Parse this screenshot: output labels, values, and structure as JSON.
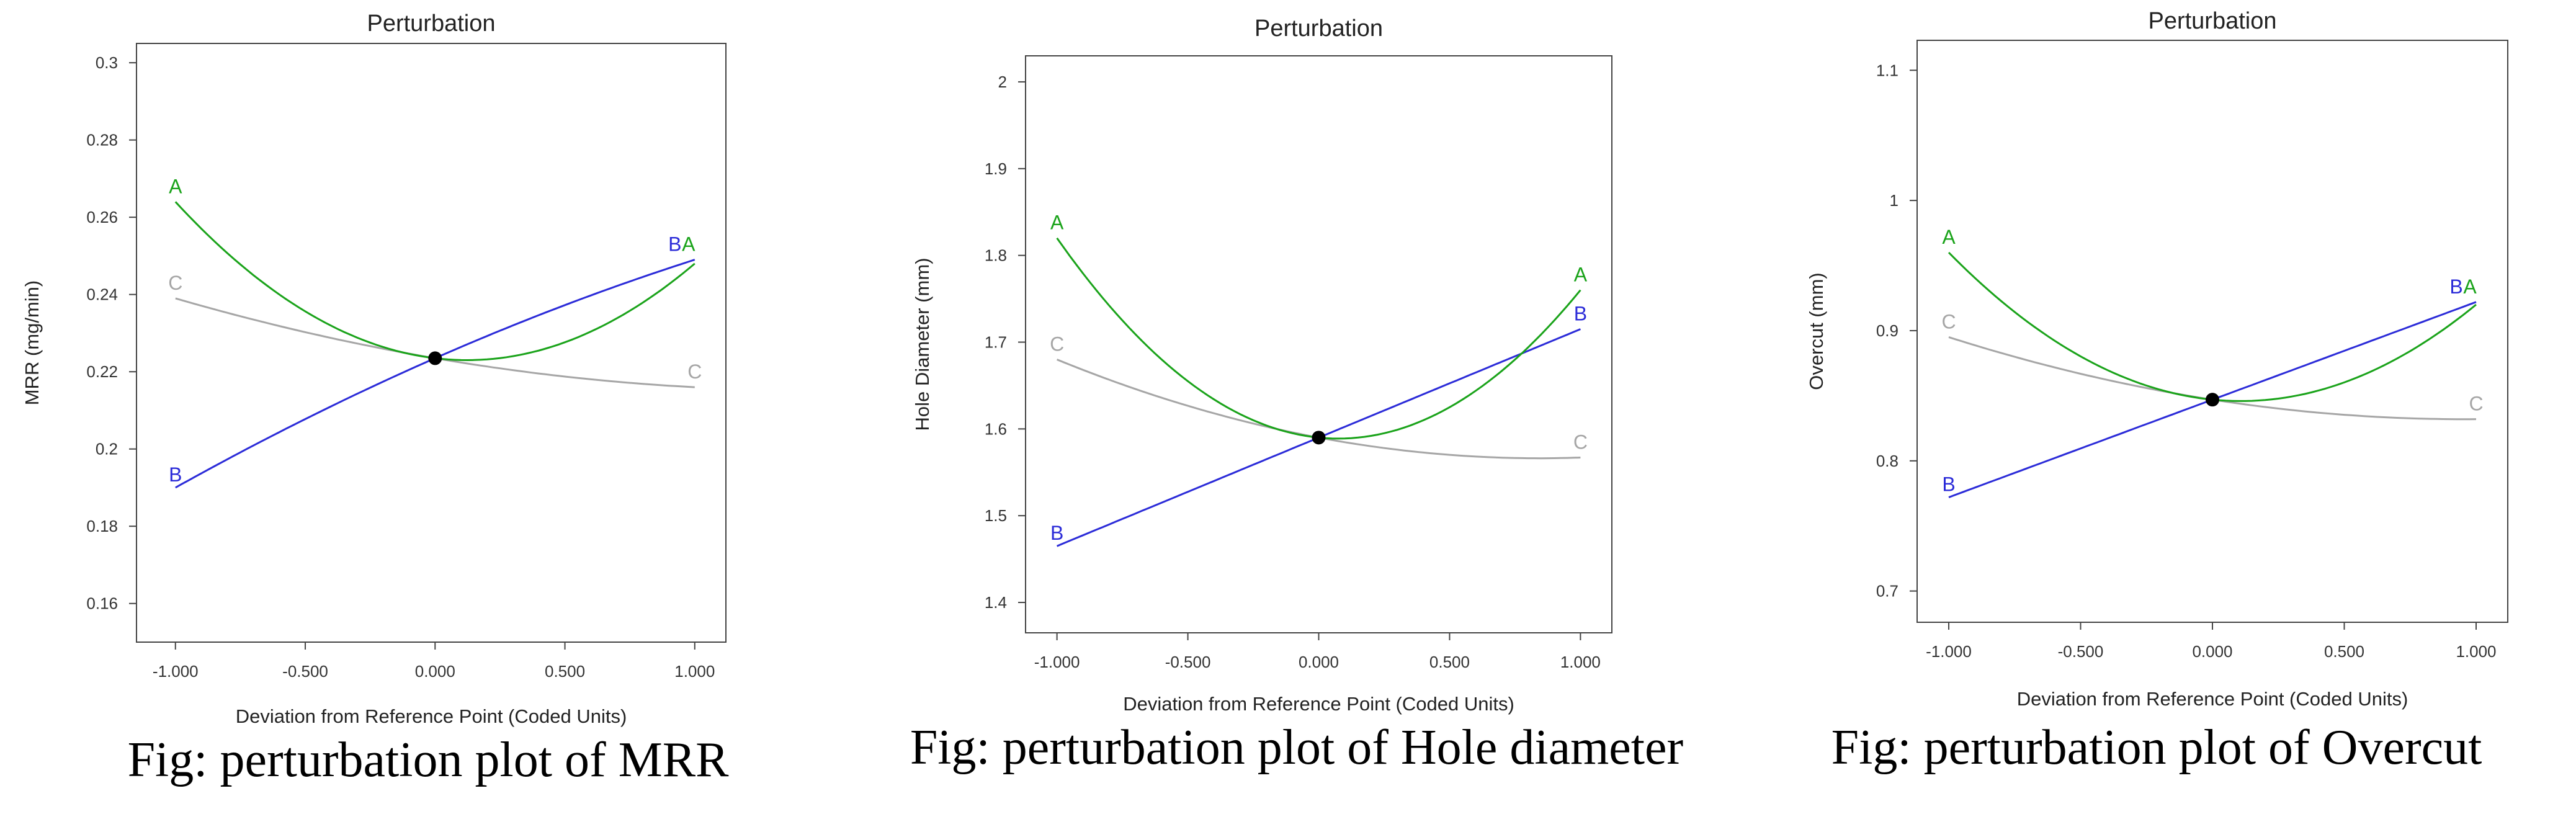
{
  "colors": {
    "A": "#1aa31a",
    "B": "#2b2bd8",
    "C": "#a6a6a6"
  },
  "chart_data": [
    {
      "type": "line",
      "title": "Perturbation",
      "xlabel": "Deviation from Reference Point (Coded Units)",
      "ylabel": "MRR (mg/min)",
      "xlim": [
        -1.15,
        1.12
      ],
      "ylim": [
        0.15,
        0.305
      ],
      "xticks": [
        "-1.000",
        "-0.500",
        "0.000",
        "0.500",
        "1.000"
      ],
      "xtick_values": [
        -1,
        -0.5,
        0,
        0.5,
        1
      ],
      "yticks": [
        "0.16",
        "0.18",
        "0.2",
        "0.22",
        "0.24",
        "0.26",
        "0.28",
        "0.3"
      ],
      "ytick_values": [
        0.16,
        0.18,
        0.2,
        0.22,
        0.24,
        0.26,
        0.28,
        0.3
      ],
      "reference_point": {
        "x": 0,
        "y": 0.2235
      },
      "series": [
        {
          "name": "A",
          "x": [
            -1,
            0,
            1
          ],
          "y": [
            0.264,
            0.2235,
            0.248
          ]
        },
        {
          "name": "B",
          "x": [
            -1,
            0,
            1
          ],
          "y": [
            0.19,
            0.2235,
            0.249
          ]
        },
        {
          "name": "C",
          "x": [
            -1,
            0,
            1
          ],
          "y": [
            0.239,
            0.2235,
            0.216
          ]
        }
      ],
      "caption": "Fig: perturbation plot of MRR"
    },
    {
      "type": "line",
      "title": "Perturbation",
      "xlabel": "Deviation from Reference Point (Coded Units)",
      "ylabel": "Hole Diameter (mm)",
      "xlim": [
        -1.12,
        1.12
      ],
      "ylim": [
        1.365,
        2.03
      ],
      "xticks": [
        "-1.000",
        "-0.500",
        "0.000",
        "0.500",
        "1.000"
      ],
      "xtick_values": [
        -1,
        -0.5,
        0,
        0.5,
        1
      ],
      "yticks": [
        "1.4",
        "1.5",
        "1.6",
        "1.7",
        "1.8",
        "1.9",
        "2"
      ],
      "ytick_values": [
        1.4,
        1.5,
        1.6,
        1.7,
        1.8,
        1.9,
        2
      ],
      "reference_point": {
        "x": 0,
        "y": 1.59
      },
      "series": [
        {
          "name": "A",
          "x": [
            -1,
            0,
            1
          ],
          "y": [
            1.82,
            1.59,
            1.76
          ]
        },
        {
          "name": "B",
          "x": [
            -1,
            0,
            1
          ],
          "y": [
            1.465,
            1.59,
            1.715
          ]
        },
        {
          "name": "C",
          "x": [
            -1,
            0,
            1
          ],
          "y": [
            1.68,
            1.59,
            1.567
          ]
        }
      ],
      "caption": "Fig: perturbation plot of Hole diameter"
    },
    {
      "type": "line",
      "title": "Perturbation",
      "xlabel": "Deviation from Reference Point (Coded Units)",
      "ylabel": "Overcut (mm)",
      "xlim": [
        -1.12,
        1.12
      ],
      "ylim": [
        0.676,
        1.123
      ],
      "xticks": [
        "-1.000",
        "-0.500",
        "0.000",
        "0.500",
        "1.000"
      ],
      "xtick_values": [
        -1,
        -0.5,
        0,
        0.5,
        1
      ],
      "yticks": [
        "0.7",
        "0.8",
        "0.9",
        "1",
        "1.1"
      ],
      "ytick_values": [
        0.7,
        0.8,
        0.9,
        1,
        1.1
      ],
      "reference_point": {
        "x": 0,
        "y": 0.847
      },
      "series": [
        {
          "name": "A",
          "x": [
            -1,
            0,
            1
          ],
          "y": [
            0.96,
            0.847,
            0.92
          ]
        },
        {
          "name": "B",
          "x": [
            -1,
            0,
            1
          ],
          "y": [
            0.772,
            0.847,
            0.922
          ]
        },
        {
          "name": "C",
          "x": [
            -1,
            0,
            1
          ],
          "y": [
            0.895,
            0.847,
            0.832
          ]
        }
      ],
      "caption": "Fig: perturbation plot of Overcut"
    }
  ]
}
